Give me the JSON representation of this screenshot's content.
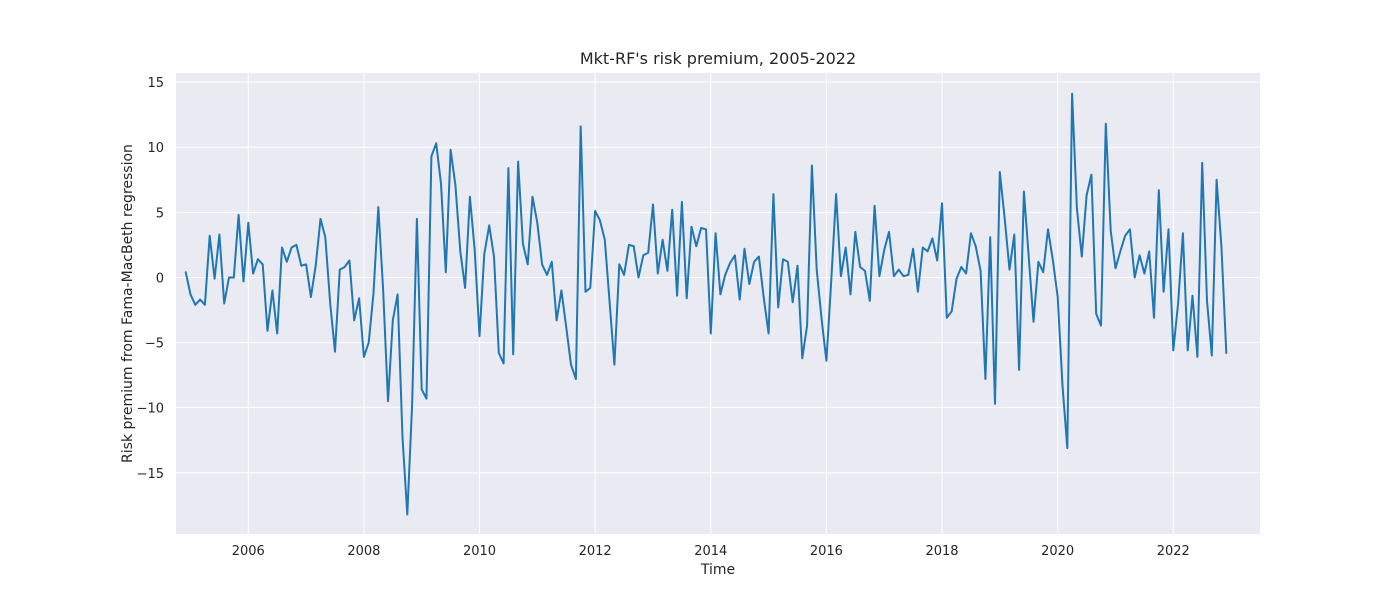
{
  "chart_data": {
    "type": "line",
    "title": "Mkt-RF's risk premium, 2005-2022",
    "xlabel": "Time",
    "ylabel": "Risk premium from Fama-MacBeth regression",
    "xlim": [
      2004.75,
      2023.5
    ],
    "ylim": [
      -19.7,
      15.7
    ],
    "xticks": [
      2006,
      2008,
      2010,
      2012,
      2014,
      2016,
      2018,
      2020,
      2022
    ],
    "xtick_labels": [
      "2006",
      "2008",
      "2010",
      "2012",
      "2014",
      "2016",
      "2018",
      "2020",
      "2022"
    ],
    "yticks": [
      -15,
      -10,
      -5,
      0,
      5,
      10,
      15
    ],
    "ytick_labels": [
      "−15",
      "−10",
      "−5",
      "0",
      "5",
      "10",
      "15"
    ],
    "grid": true,
    "colors": {
      "background": "#eaeaf2",
      "grid": "#ffffff",
      "line": "#1f77b4"
    },
    "series": [
      {
        "name": "",
        "x": [
          2004.917,
          2005.0,
          2005.083,
          2005.167,
          2005.25,
          2005.333,
          2005.417,
          2005.5,
          2005.583,
          2005.667,
          2005.75,
          2005.833,
          2005.917,
          2006.0,
          2006.083,
          2006.167,
          2006.25,
          2006.333,
          2006.417,
          2006.5,
          2006.583,
          2006.667,
          2006.75,
          2006.833,
          2006.917,
          2007.0,
          2007.083,
          2007.167,
          2007.25,
          2007.333,
          2007.417,
          2007.5,
          2007.583,
          2007.667,
          2007.75,
          2007.833,
          2007.917,
          2008.0,
          2008.083,
          2008.167,
          2008.25,
          2008.333,
          2008.417,
          2008.5,
          2008.583,
          2008.667,
          2008.75,
          2008.833,
          2008.917,
          2009.0,
          2009.083,
          2009.167,
          2009.25,
          2009.333,
          2009.417,
          2009.5,
          2009.583,
          2009.667,
          2009.75,
          2009.833,
          2009.917,
          2010.0,
          2010.083,
          2010.167,
          2010.25,
          2010.333,
          2010.417,
          2010.5,
          2010.583,
          2010.667,
          2010.75,
          2010.833,
          2010.917,
          2011.0,
          2011.083,
          2011.167,
          2011.25,
          2011.333,
          2011.417,
          2011.5,
          2011.583,
          2011.667,
          2011.75,
          2011.833,
          2011.917,
          2012.0,
          2012.083,
          2012.167,
          2012.25,
          2012.333,
          2012.417,
          2012.5,
          2012.583,
          2012.667,
          2012.75,
          2012.833,
          2012.917,
          2013.0,
          2013.083,
          2013.167,
          2013.25,
          2013.333,
          2013.417,
          2013.5,
          2013.583,
          2013.667,
          2013.75,
          2013.833,
          2013.917,
          2014.0,
          2014.083,
          2014.167,
          2014.25,
          2014.333,
          2014.417,
          2014.5,
          2014.583,
          2014.667,
          2014.75,
          2014.833,
          2014.917,
          2015.0,
          2015.083,
          2015.167,
          2015.25,
          2015.333,
          2015.417,
          2015.5,
          2015.583,
          2015.667,
          2015.75,
          2015.833,
          2015.917,
          2016.0,
          2016.083,
          2016.167,
          2016.25,
          2016.333,
          2016.417,
          2016.5,
          2016.583,
          2016.667,
          2016.75,
          2016.833,
          2016.917,
          2017.0,
          2017.083,
          2017.167,
          2017.25,
          2017.333,
          2017.417,
          2017.5,
          2017.583,
          2017.667,
          2017.75,
          2017.833,
          2017.917,
          2018.0,
          2018.083,
          2018.167,
          2018.25,
          2018.333,
          2018.417,
          2018.5,
          2018.583,
          2018.667,
          2018.75,
          2018.833,
          2018.917,
          2019.0,
          2019.083,
          2019.167,
          2019.25,
          2019.333,
          2019.417,
          2019.5,
          2019.583,
          2019.667,
          2019.75,
          2019.833,
          2019.917,
          2020.0,
          2020.083,
          2020.167,
          2020.25,
          2020.333,
          2020.417,
          2020.5,
          2020.583,
          2020.667,
          2020.75,
          2020.833,
          2020.917,
          2021.0,
          2021.083,
          2021.167,
          2021.25,
          2021.333,
          2021.417,
          2021.5,
          2021.583,
          2021.667,
          2021.75,
          2021.833,
          2021.917,
          2022.0,
          2022.083,
          2022.167,
          2022.25,
          2022.333,
          2022.417,
          2022.5,
          2022.583,
          2022.667,
          2022.75,
          2022.833,
          2022.917
        ],
        "y": [
          0.4,
          -1.3,
          -2.1,
          -1.7,
          -2.1,
          3.2,
          -0.1,
          3.3,
          -2.0,
          0.0,
          0.0,
          4.8,
          -0.3,
          4.2,
          0.3,
          1.4,
          1.0,
          -4.1,
          -1.0,
          -4.3,
          2.3,
          1.2,
          2.3,
          2.5,
          0.9,
          1.0,
          -1.5,
          0.9,
          4.5,
          3.1,
          -2.0,
          -5.7,
          0.6,
          0.8,
          1.3,
          -3.3,
          -1.6,
          -6.1,
          -5.0,
          -1.2,
          5.4,
          -0.9,
          -9.5,
          -3.3,
          -1.3,
          -12.3,
          -18.2,
          -9.8,
          4.5,
          -8.6,
          -9.3,
          9.3,
          10.3,
          7.2,
          0.4,
          9.8,
          7.1,
          2.0,
          -0.8,
          6.2,
          2.1,
          -4.5,
          1.8,
          4.0,
          1.6,
          -5.8,
          -6.6,
          8.4,
          -5.9,
          8.9,
          2.6,
          1.0,
          6.2,
          4.2,
          1.0,
          0.2,
          1.2,
          -3.3,
          -1.0,
          -3.8,
          -6.7,
          -7.8,
          11.6,
          -1.1,
          -0.8,
          5.1,
          4.4,
          2.9,
          -1.9,
          -6.7,
          1.0,
          0.2,
          2.5,
          2.4,
          0.0,
          1.7,
          1.9,
          5.6,
          0.3,
          2.9,
          0.5,
          5.2,
          -1.4,
          5.8,
          -1.6,
          3.9,
          2.4,
          3.8,
          3.7,
          -4.3,
          3.4,
          -1.3,
          0.2,
          1.1,
          1.7,
          -1.7,
          2.2,
          -0.5,
          1.2,
          1.6,
          -1.6,
          -4.3,
          6.4,
          -2.3,
          1.4,
          1.2,
          -1.9,
          0.9,
          -6.2,
          -3.7,
          8.6,
          0.6,
          -3.2,
          -6.4,
          -0.3,
          6.4,
          0.1,
          2.3,
          -1.3,
          3.5,
          0.8,
          0.5,
          -1.8,
          5.5,
          0.1,
          2.1,
          3.5,
          0.1,
          0.6,
          0.1,
          0.2,
          2.2,
          -1.1,
          2.3,
          2.0,
          3.0,
          1.3,
          5.7,
          -3.1,
          -2.6,
          -0.1,
          0.8,
          0.3,
          3.4,
          2.4,
          0.5,
          -7.8,
          3.1,
          -9.7,
          8.1,
          4.6,
          0.6,
          3.3,
          -7.1,
          6.6,
          1.6,
          -3.4,
          1.2,
          0.4,
          3.7,
          1.3,
          -1.5,
          -8.3,
          -13.1,
          14.1,
          5.3,
          1.6,
          6.3,
          7.9,
          -2.8,
          -3.7,
          11.8,
          3.6,
          0.7,
          2.0,
          3.2,
          3.7,
          0.0,
          1.7,
          0.3,
          2.0,
          -3.1,
          6.7,
          -1.1,
          3.7,
          -5.6,
          -2.0,
          3.4,
          -5.6,
          -1.4,
          -6.1,
          8.8,
          -1.8,
          -6.0,
          7.5,
          2.4,
          -5.8
        ]
      }
    ]
  }
}
